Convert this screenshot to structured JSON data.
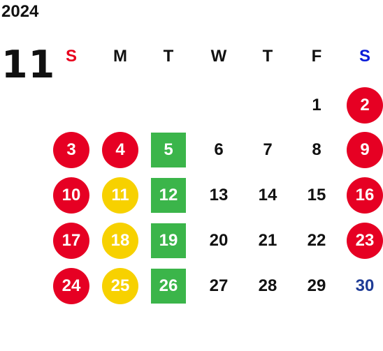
{
  "calendar": {
    "year": "2024",
    "month": "11",
    "weekdays": [
      {
        "label": "S",
        "color": "#e8001c"
      },
      {
        "label": "M",
        "color": "#111111"
      },
      {
        "label": "T",
        "color": "#111111"
      },
      {
        "label": "W",
        "color": "#111111"
      },
      {
        "label": "T",
        "color": "#111111"
      },
      {
        "label": "F",
        "color": "#111111"
      },
      {
        "label": "S",
        "color": "#0a1cd8"
      }
    ],
    "colors": {
      "red_holiday": "#e60023",
      "yellow": "#f7d100",
      "green": "#3bb54a",
      "blue_text": "#1f3c96",
      "plain_text": "#111111"
    },
    "days": [
      {
        "n": "1",
        "col": 5,
        "row": 0,
        "style": "plain"
      },
      {
        "n": "2",
        "col": 6,
        "row": 0,
        "style": "red"
      },
      {
        "n": "3",
        "col": 0,
        "row": 1,
        "style": "red"
      },
      {
        "n": "4",
        "col": 1,
        "row": 1,
        "style": "red"
      },
      {
        "n": "5",
        "col": 2,
        "row": 1,
        "style": "green"
      },
      {
        "n": "6",
        "col": 3,
        "row": 1,
        "style": "plain"
      },
      {
        "n": "7",
        "col": 4,
        "row": 1,
        "style": "plain"
      },
      {
        "n": "8",
        "col": 5,
        "row": 1,
        "style": "plain"
      },
      {
        "n": "9",
        "col": 6,
        "row": 1,
        "style": "red"
      },
      {
        "n": "10",
        "col": 0,
        "row": 2,
        "style": "red"
      },
      {
        "n": "11",
        "col": 1,
        "row": 2,
        "style": "yellow"
      },
      {
        "n": "12",
        "col": 2,
        "row": 2,
        "style": "green"
      },
      {
        "n": "13",
        "col": 3,
        "row": 2,
        "style": "plain"
      },
      {
        "n": "14",
        "col": 4,
        "row": 2,
        "style": "plain"
      },
      {
        "n": "15",
        "col": 5,
        "row": 2,
        "style": "plain"
      },
      {
        "n": "16",
        "col": 6,
        "row": 2,
        "style": "red"
      },
      {
        "n": "17",
        "col": 0,
        "row": 3,
        "style": "red"
      },
      {
        "n": "18",
        "col": 1,
        "row": 3,
        "style": "yellow"
      },
      {
        "n": "19",
        "col": 2,
        "row": 3,
        "style": "green"
      },
      {
        "n": "20",
        "col": 3,
        "row": 3,
        "style": "plain"
      },
      {
        "n": "21",
        "col": 4,
        "row": 3,
        "style": "plain"
      },
      {
        "n": "22",
        "col": 5,
        "row": 3,
        "style": "plain"
      },
      {
        "n": "23",
        "col": 6,
        "row": 3,
        "style": "red"
      },
      {
        "n": "24",
        "col": 0,
        "row": 4,
        "style": "red"
      },
      {
        "n": "25",
        "col": 1,
        "row": 4,
        "style": "yellow"
      },
      {
        "n": "26",
        "col": 2,
        "row": 4,
        "style": "green"
      },
      {
        "n": "27",
        "col": 3,
        "row": 4,
        "style": "plain"
      },
      {
        "n": "28",
        "col": 4,
        "row": 4,
        "style": "plain"
      },
      {
        "n": "29",
        "col": 5,
        "row": 4,
        "style": "plain"
      },
      {
        "n": "30",
        "col": 6,
        "row": 4,
        "style": "blue"
      }
    ]
  }
}
